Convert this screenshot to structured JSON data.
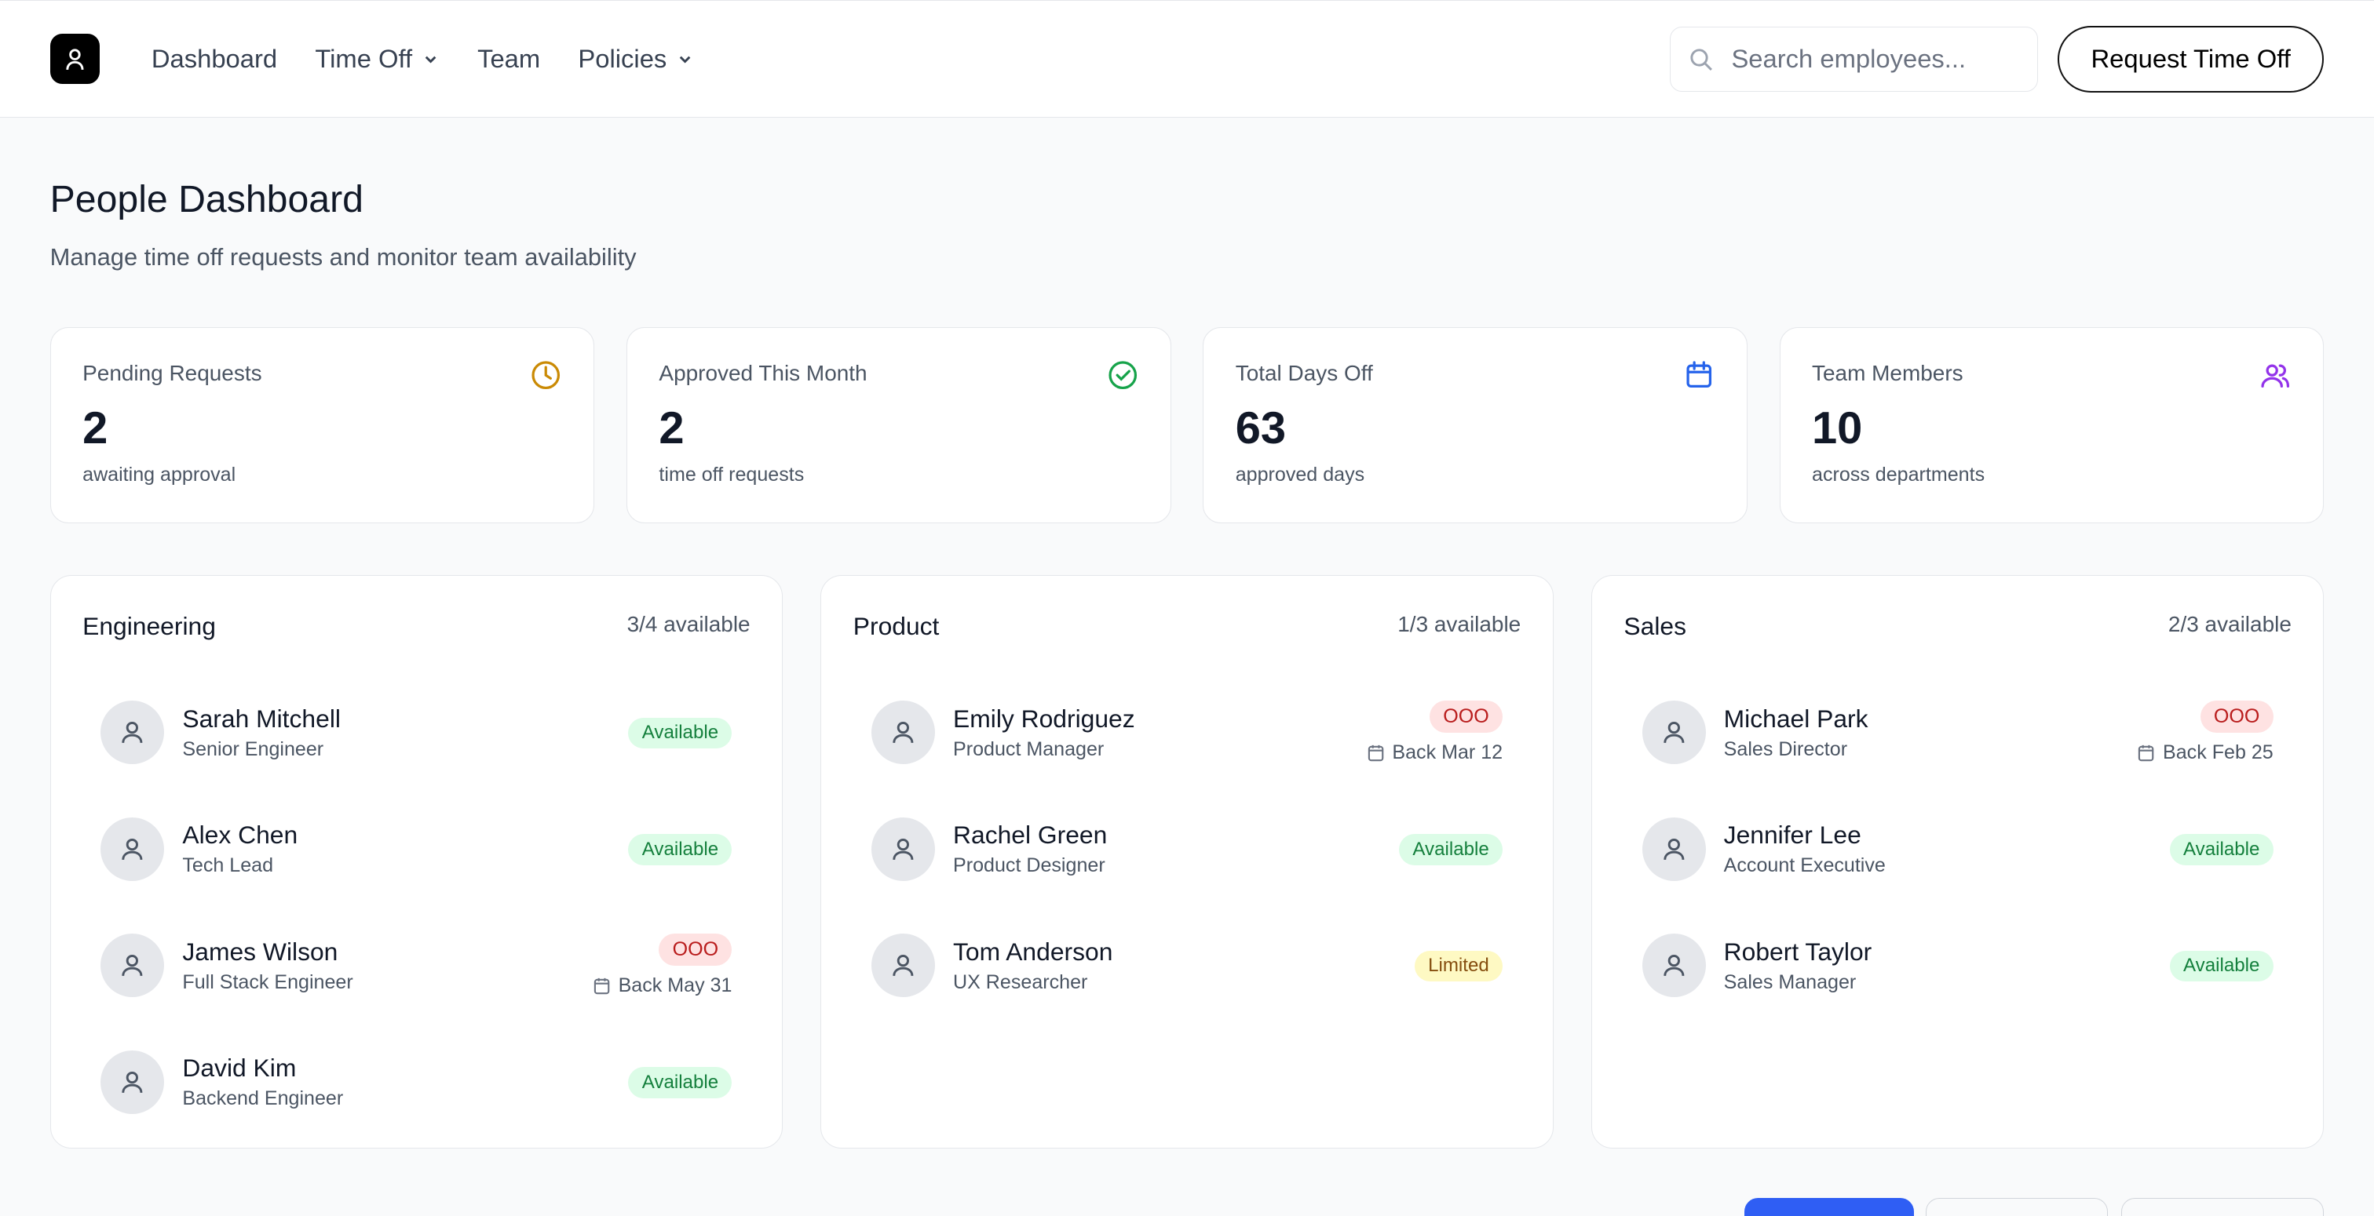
{
  "nav": {
    "items": [
      {
        "label": "Dashboard",
        "dropdown": false
      },
      {
        "label": "Time Off",
        "dropdown": true
      },
      {
        "label": "Team",
        "dropdown": false
      },
      {
        "label": "Policies",
        "dropdown": true
      }
    ],
    "search_placeholder": "Search employees...",
    "request_label": "Request Time Off"
  },
  "page": {
    "title": "People Dashboard",
    "subtitle": "Manage time off requests and monitor team availability"
  },
  "stats": [
    {
      "label": "Pending Requests",
      "value": "2",
      "desc": "awaiting approval",
      "icon": "clock-icon",
      "color": "#ca8a04"
    },
    {
      "label": "Approved This Month",
      "value": "2",
      "desc": "time off requests",
      "icon": "check-circle-icon",
      "color": "#16a34a"
    },
    {
      "label": "Total Days Off",
      "value": "63",
      "desc": "approved days",
      "icon": "calendar-icon",
      "color": "#2563eb"
    },
    {
      "label": "Team Members",
      "value": "10",
      "desc": "across departments",
      "icon": "users-icon",
      "color": "#9333ea"
    }
  ],
  "departments": [
    {
      "name": "Engineering",
      "available": "3/4 available",
      "members": [
        {
          "name": "Sarah Mitchell",
          "role": "Senior Engineer",
          "status": "Available",
          "type": "available"
        },
        {
          "name": "Alex Chen",
          "role": "Tech Lead",
          "status": "Available",
          "type": "available"
        },
        {
          "name": "James Wilson",
          "role": "Full Stack Engineer",
          "status": "OOO",
          "type": "ooo",
          "back": "Back May 31"
        },
        {
          "name": "David Kim",
          "role": "Backend Engineer",
          "status": "Available",
          "type": "available"
        }
      ]
    },
    {
      "name": "Product",
      "available": "1/3 available",
      "members": [
        {
          "name": "Emily Rodriguez",
          "role": "Product Manager",
          "status": "OOO",
          "type": "ooo",
          "back": "Back Mar 12"
        },
        {
          "name": "Rachel Green",
          "role": "Product Designer",
          "status": "Available",
          "type": "available"
        },
        {
          "name": "Tom Anderson",
          "role": "UX Researcher",
          "status": "Limited",
          "type": "limited"
        }
      ]
    },
    {
      "name": "Sales",
      "available": "2/3 available",
      "members": [
        {
          "name": "Michael Park",
          "role": "Sales Director",
          "status": "OOO",
          "type": "ooo",
          "back": "Back Feb 25"
        },
        {
          "name": "Jennifer Lee",
          "role": "Account Executive",
          "status": "Available",
          "type": "available"
        },
        {
          "name": "Robert Taylor",
          "role": "Sales Manager",
          "status": "Available",
          "type": "available"
        }
      ]
    }
  ],
  "colors": {
    "primary": "#2563eb"
  }
}
